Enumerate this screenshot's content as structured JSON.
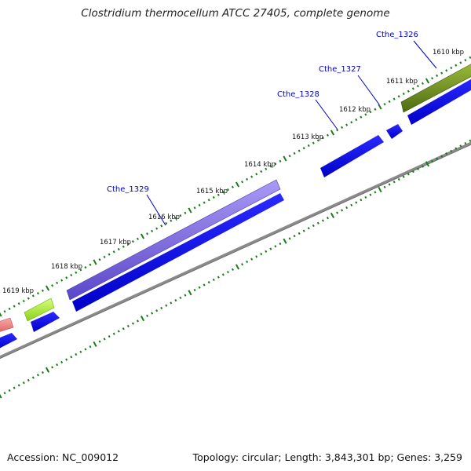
{
  "map": {
    "title": "Clostridium thermocellum ATCC 27405, complete genome",
    "accession_label": "Accession: NC_009012",
    "summary_label": "Topology: circular; Length: 3,843,301 bp; Genes: 3,259"
  },
  "kbp_ticks": [
    "1610 kbp",
    "1611 kbp",
    "1612 kbp",
    "1613 kbp",
    "1614 kbp",
    "1615 kbp",
    "1616 kbp",
    "1617 kbp",
    "1618 kbp",
    "1619 kbp"
  ],
  "gene_labels": [
    "Cthe_1326",
    "Cthe_1327",
    "Cthe_1328",
    "Cthe_1329"
  ],
  "colors": {
    "cds_blue": "#0000ee",
    "olive_feature": "#6b8e23",
    "purple_feature": "#7b68ee",
    "lime_feature": "#adff2f",
    "pink_feature": "#f08080",
    "tick_green": "#1a7a1a",
    "backbone_gray": "#888888",
    "label_blue": "#0000cc"
  }
}
